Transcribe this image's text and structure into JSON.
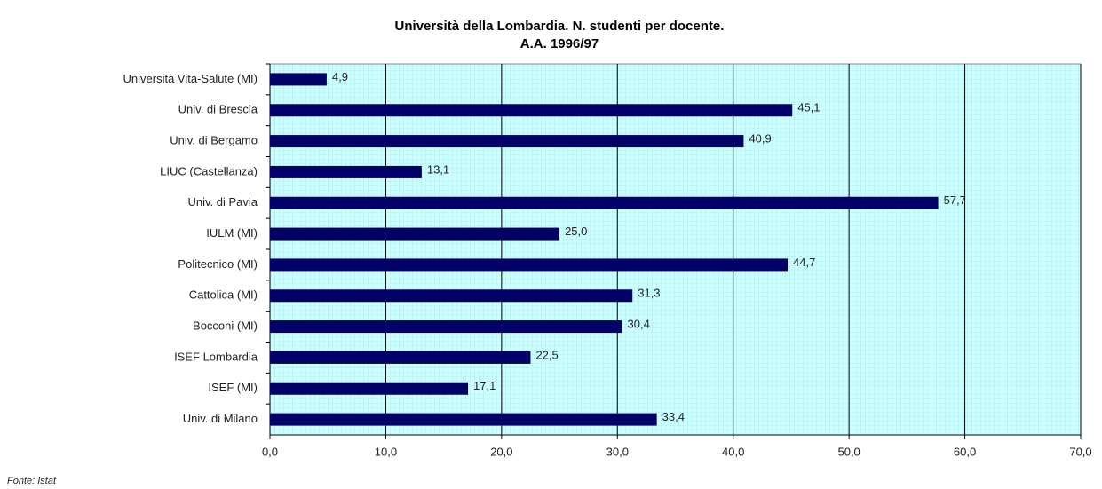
{
  "chart_data": {
    "type": "hbar",
    "title": "Università della Lombardia. N. studenti per docente.",
    "subtitle": "A.A. 1996/97",
    "source": "Fonte: Istat",
    "categories": [
      "Università Vita-Salute (MI)",
      "Univ. di Brescia",
      "Univ. di Bergamo",
      "LIUC (Castellanza)",
      "Univ. di Pavia",
      "IULM (MI)",
      "Politecnico (MI)",
      "Cattolica (MI)",
      "Bocconi (MI)",
      "ISEF Lombardia",
      "ISEF (MI)",
      "Univ. di Milano"
    ],
    "values": [
      4.9,
      45.1,
      40.9,
      13.1,
      57.7,
      25.0,
      44.7,
      31.3,
      30.4,
      22.5,
      17.1,
      33.4
    ],
    "value_labels": [
      "4,9",
      "45,1",
      "40,9",
      "13,1",
      "57,7",
      "25,0",
      "44,7",
      "31,3",
      "30,4",
      "22,5",
      "17,1",
      "33,4"
    ],
    "color": "#000066",
    "xlim": [
      0,
      70
    ],
    "xticks": [
      {
        "value": 0,
        "label": "0,0"
      },
      {
        "value": 10,
        "label": "10,0"
      },
      {
        "value": 20,
        "label": "20,0"
      },
      {
        "value": 30,
        "label": "30,0"
      },
      {
        "value": 40,
        "label": "40,0"
      },
      {
        "value": 50,
        "label": "50,0"
      },
      {
        "value": 60,
        "label": "60,0"
      },
      {
        "value": 70,
        "label": "70,0"
      }
    ],
    "grid": true
  }
}
